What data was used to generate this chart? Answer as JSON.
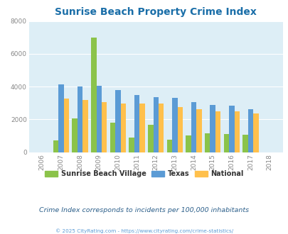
{
  "title": "Sunrise Beach Property Crime Index",
  "years": [
    2006,
    2007,
    2008,
    2009,
    2010,
    2011,
    2012,
    2013,
    2014,
    2015,
    2016,
    2017,
    2018
  ],
  "sunrise_beach": [
    0,
    700,
    2050,
    7000,
    1800,
    900,
    1650,
    750,
    1000,
    1150,
    1100,
    1050,
    0
  ],
  "texas": [
    0,
    4150,
    4000,
    4050,
    3800,
    3500,
    3350,
    3300,
    3050,
    2900,
    2850,
    2600,
    0
  ],
  "national": [
    0,
    3250,
    3200,
    3050,
    2950,
    2950,
    2950,
    2750,
    2600,
    2500,
    2500,
    2350,
    0
  ],
  "color_sunrise": "#8bc34a",
  "color_texas": "#5b9bd5",
  "color_national": "#ffc04c",
  "bg_color": "#ddeef6",
  "ylim": [
    0,
    8000
  ],
  "yticks": [
    0,
    2000,
    4000,
    6000,
    8000
  ],
  "title_color": "#1a6ea8",
  "subtitle": "Crime Index corresponds to incidents per 100,000 inhabitants",
  "subtitle_color": "#2c5f8a",
  "footer": "© 2025 CityRating.com - https://www.cityrating.com/crime-statistics/",
  "footer_color": "#5b9bd5",
  "legend_labels": [
    "Sunrise Beach Village",
    "Texas",
    "National"
  ],
  "bar_width": 0.28
}
